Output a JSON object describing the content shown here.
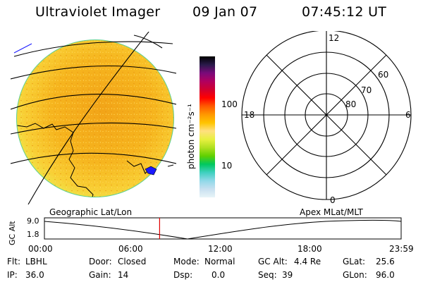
{
  "header": {
    "title": "Ultraviolet Imager",
    "date": "09 Jan 07",
    "time": "07:45:12 UT"
  },
  "colorbar": {
    "unit_label": "photon cm⁻²s⁻¹",
    "ticks": [
      "100",
      "10"
    ],
    "colors": [
      "#000000",
      "#2a1a4a",
      "#7a0a7a",
      "#b00060",
      "#d00030",
      "#ff0000",
      "#ff5a00",
      "#ff9800",
      "#ffc400",
      "#ffe080",
      "#e8f040",
      "#b0e020",
      "#60d000",
      "#00c860",
      "#40d0c0",
      "#90d8e8",
      "#c8e0f0",
      "#e8f4f8"
    ]
  },
  "polar": {
    "mlt_labels": {
      "top": "12",
      "left": "18",
      "right": "6",
      "bottom": "0"
    },
    "lat_labels": [
      "60",
      "70",
      "80"
    ]
  },
  "coord_labels": {
    "left": "Geographic Lat/Lon",
    "right": "Apex MLat/MLT"
  },
  "altitude_plot": {
    "y_label": "GC Alt",
    "y_max": "9.0",
    "y_min": "1.8",
    "x_ticks": [
      "00:00",
      "06:00",
      "12:00",
      "18:00",
      "23:59"
    ],
    "marker_time_hours": 7.75
  },
  "info": {
    "flt_label": "Flt:",
    "flt_value": "LBHL",
    "ip_label": "IP:",
    "ip_value": "36.0",
    "door_label": "Door:",
    "door_value": "Closed",
    "gain_label": "Gain:",
    "gain_value": "14",
    "mode_label": "Mode:",
    "mode_value": "Normal",
    "dsp_label": "Dsp:",
    "dsp_value": "0.0",
    "gcalt_label": "GC Alt:",
    "gcalt_value": "4.4 Re",
    "seq_label": "Seq:",
    "seq_value": "39",
    "glat_label": "GLat:",
    "glat_value": "25.6",
    "glon_label": "GLon:",
    "glon_value": "96.0"
  }
}
